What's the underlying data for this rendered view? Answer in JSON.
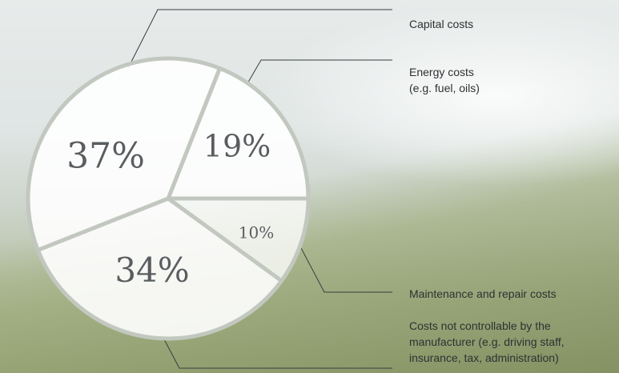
{
  "chart_data": {
    "type": "pie",
    "categories": [
      "Energy costs\n(e.g. fuel, oils)",
      "Maintenance and repair costs",
      "Costs not controllable by the\nmanufacturer (e.g. driving staff,\ninsurance, tax, administration)",
      "Capital costs"
    ],
    "values": [
      19,
      10,
      34,
      37
    ],
    "value_labels": [
      "19%",
      "10%",
      "34%",
      "37%"
    ],
    "color": "#ffffff"
  }
}
